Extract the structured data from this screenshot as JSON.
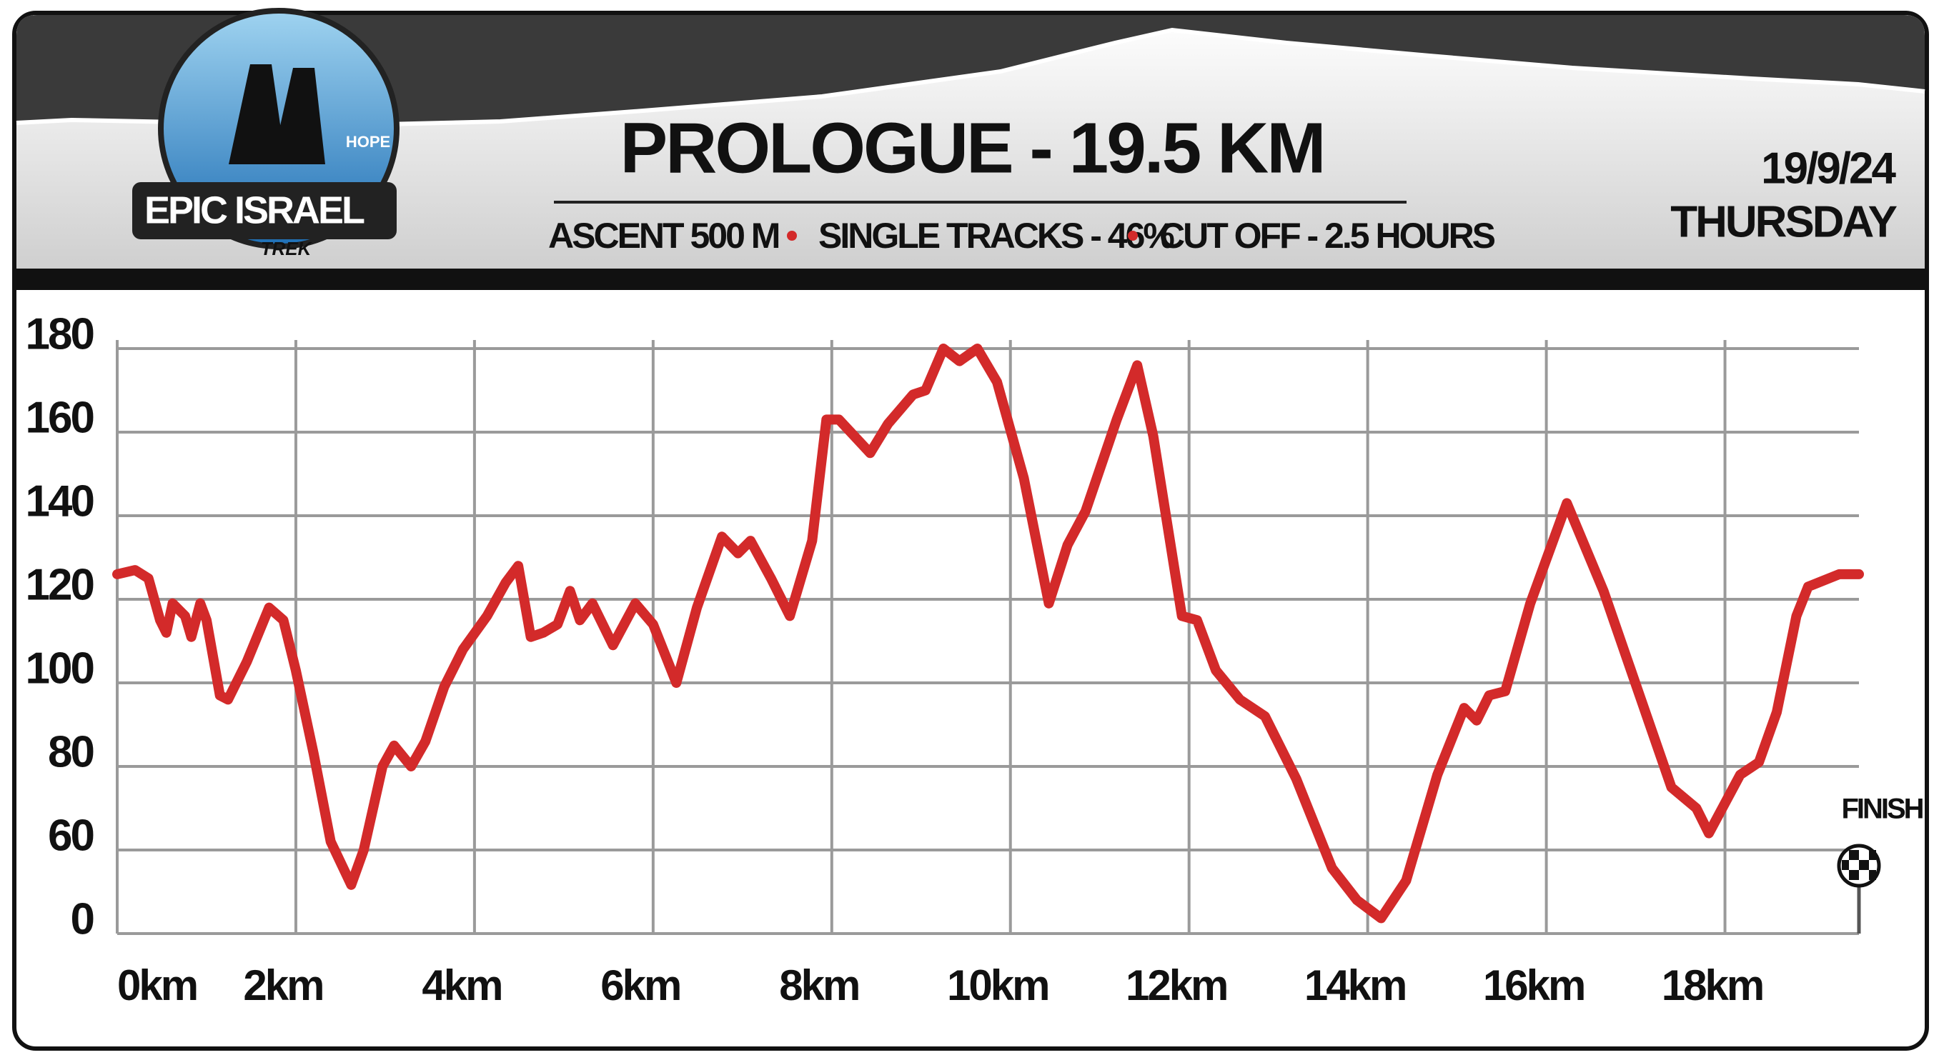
{
  "header": {
    "title": "PROLOGUE -  19.5 KM",
    "ascent": "ASCENT 500 M",
    "single_tracks": "SINGLE TRACKS - 46%",
    "cut_off": "CUT OFF - 2.5 HOURS",
    "date": "19/9/24",
    "day": "THURSDAY",
    "logo": {
      "name": "EPIC ISRAEL",
      "sponsor": "TREK",
      "badge": "HOPE"
    }
  },
  "chart_data": {
    "type": "line",
    "finish_label": "FINISH",
    "x": [
      0,
      0.2,
      0.35,
      0.48,
      0.55,
      0.62,
      0.76,
      0.83,
      0.93,
      1.0,
      1.15,
      1.24,
      1.45,
      1.7,
      1.86,
      2.0,
      2.2,
      2.39,
      2.62,
      2.76,
      2.97,
      3.1,
      3.29,
      3.45,
      3.66,
      3.87,
      4.14,
      4.35,
      4.49,
      4.63,
      4.77,
      4.93,
      5.07,
      5.18,
      5.32,
      5.55,
      5.8,
      6.0,
      6.26,
      6.49,
      6.77,
      6.95,
      7.09,
      7.32,
      7.53,
      7.78,
      7.94,
      8.08,
      8.43,
      8.63,
      8.91,
      9.05,
      9.25,
      9.43,
      9.63,
      9.85,
      10.15,
      10.43,
      10.64,
      10.84,
      11.19,
      11.42,
      11.6,
      11.92,
      12.09,
      12.3,
      12.57,
      12.85,
      13.2,
      13.6,
      13.88,
      14.15,
      14.43,
      14.78,
      15.08,
      15.22,
      15.36,
      15.54,
      15.82,
      16.23,
      16.64,
      17.06,
      17.4,
      17.68,
      17.82,
      18.17,
      18.38,
      18.58,
      18.8,
      18.93,
      19.28,
      19.5
    ],
    "series": [
      {
        "name": "Elevation",
        "color": "#d32a2a",
        "values": [
          126,
          127,
          125,
          115,
          112,
          119,
          116,
          111,
          119,
          115,
          97,
          96,
          105,
          118,
          115,
          103,
          83,
          62,
          35,
          60,
          80,
          85,
          80,
          86,
          99,
          108,
          116,
          124,
          128,
          111,
          112,
          114,
          122,
          115,
          119,
          109,
          119,
          114,
          100,
          118,
          135,
          131,
          134,
          125,
          116,
          134,
          163,
          163,
          155,
          162,
          169,
          170,
          180,
          177,
          180,
          172,
          149,
          119,
          133,
          141,
          163,
          176,
          159,
          116,
          115,
          103,
          96,
          92,
          77,
          47,
          24,
          11,
          38,
          78,
          94,
          91,
          97,
          98,
          119,
          143,
          122,
          96,
          75,
          70,
          64,
          78,
          81,
          93,
          116,
          123,
          126,
          126
        ]
      }
    ],
    "xlim": [
      0,
      19.5
    ],
    "xticks": [
      {
        "value": 0,
        "label": "0km"
      },
      {
        "value": 2,
        "label": "2km"
      },
      {
        "value": 4,
        "label": "4km"
      },
      {
        "value": 6,
        "label": "6km"
      },
      {
        "value": 8,
        "label": "8km"
      },
      {
        "value": 10,
        "label": "10km"
      },
      {
        "value": 12,
        "label": "12km"
      },
      {
        "value": 14,
        "label": "14km"
      },
      {
        "value": 16,
        "label": "16km"
      },
      {
        "value": 18,
        "label": "18km"
      }
    ],
    "ylim": [
      0,
      180
    ],
    "yticks": [
      0,
      60,
      80,
      100,
      120,
      140,
      160,
      180
    ],
    "grid": true
  }
}
